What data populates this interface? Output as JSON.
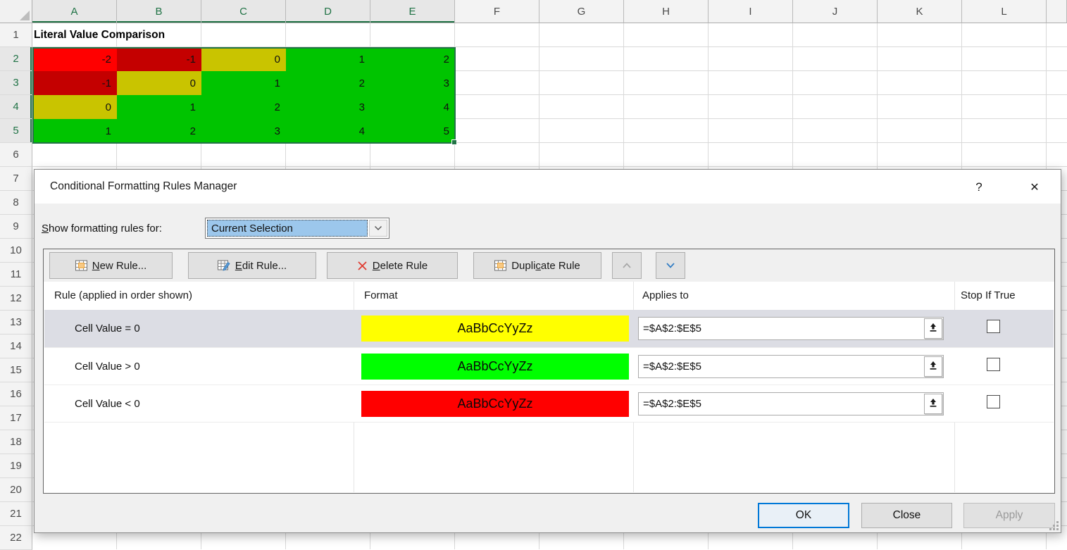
{
  "spreadsheet": {
    "columns": [
      "A",
      "B",
      "C",
      "D",
      "E",
      "F",
      "G",
      "H",
      "I",
      "J",
      "K",
      "L"
    ],
    "selected_columns": [
      "A",
      "B",
      "C",
      "D",
      "E"
    ],
    "row_count": 22,
    "selected_rows": [
      2,
      3,
      4,
      5
    ],
    "a1_title": "Literal Value Comparison",
    "colors": {
      "active_cell_red": "#FF0000",
      "shaded_red": "#C40000",
      "shaded_yellow": "#C9C400",
      "shaded_green": "#00C400",
      "selection_border": "#217346"
    },
    "cells": [
      {
        "row": 2,
        "col": "A",
        "value": "-2",
        "bg": "#FF0000"
      },
      {
        "row": 2,
        "col": "B",
        "value": "-1",
        "bg": "#C40000"
      },
      {
        "row": 2,
        "col": "C",
        "value": "0",
        "bg": "#C9C400"
      },
      {
        "row": 2,
        "col": "D",
        "value": "1",
        "bg": "#00C400"
      },
      {
        "row": 2,
        "col": "E",
        "value": "2",
        "bg": "#00C400"
      },
      {
        "row": 3,
        "col": "A",
        "value": "-1",
        "bg": "#C40000"
      },
      {
        "row": 3,
        "col": "B",
        "value": "0",
        "bg": "#C9C400"
      },
      {
        "row": 3,
        "col": "C",
        "value": "1",
        "bg": "#00C400"
      },
      {
        "row": 3,
        "col": "D",
        "value": "2",
        "bg": "#00C400"
      },
      {
        "row": 3,
        "col": "E",
        "value": "3",
        "bg": "#00C400"
      },
      {
        "row": 4,
        "col": "A",
        "value": "0",
        "bg": "#C9C400"
      },
      {
        "row": 4,
        "col": "B",
        "value": "1",
        "bg": "#00C400"
      },
      {
        "row": 4,
        "col": "C",
        "value": "2",
        "bg": "#00C400"
      },
      {
        "row": 4,
        "col": "D",
        "value": "3",
        "bg": "#00C400"
      },
      {
        "row": 4,
        "col": "E",
        "value": "4",
        "bg": "#00C400"
      },
      {
        "row": 5,
        "col": "A",
        "value": "1",
        "bg": "#00C400"
      },
      {
        "row": 5,
        "col": "B",
        "value": "2",
        "bg": "#00C400"
      },
      {
        "row": 5,
        "col": "C",
        "value": "3",
        "bg": "#00C400"
      },
      {
        "row": 5,
        "col": "D",
        "value": "4",
        "bg": "#00C400"
      },
      {
        "row": 5,
        "col": "E",
        "value": "5",
        "bg": "#00C400"
      }
    ]
  },
  "dialog": {
    "title": "Conditional Formatting Rules Manager",
    "help_glyph": "?",
    "close_glyph": "✕",
    "show_rules_label": {
      "pre": "",
      "mn": "S",
      "rest": "how formatting rules for:"
    },
    "dropdown": {
      "value": "Current Selection",
      "highlight": "#9CC7EC"
    },
    "toolbar": {
      "new_rule": {
        "pre": "",
        "mn": "N",
        "rest": "ew Rule..."
      },
      "edit_rule": {
        "pre": "",
        "mn": "E",
        "rest": "dit Rule..."
      },
      "delete_rule": {
        "pre": "",
        "mn": "D",
        "rest": "elete Rule"
      },
      "duplicate_rule": {
        "pre": "Dupli",
        "mn": "c",
        "rest": "ate Rule"
      }
    },
    "table": {
      "headers": [
        "Rule (applied in order shown)",
        "Format",
        "Applies to",
        "Stop If True"
      ],
      "rules": [
        {
          "rule": "Cell Value = 0",
          "swatch": "#FFFF00",
          "sample": "AaBbCcYyZz",
          "applies_to": "=$A$2:$E$5",
          "stop_if_true": false,
          "selected": true
        },
        {
          "rule": "Cell Value > 0",
          "swatch": "#00FF00",
          "sample": "AaBbCcYyZz",
          "applies_to": "=$A$2:$E$5",
          "stop_if_true": false,
          "selected": false
        },
        {
          "rule": "Cell Value < 0",
          "swatch": "#FF0000",
          "sample": "AaBbCcYyZz",
          "applies_to": "=$A$2:$E$5",
          "stop_if_true": false,
          "selected": false
        }
      ]
    },
    "footer": {
      "ok": "OK",
      "close": "Close",
      "apply": "Apply"
    }
  }
}
